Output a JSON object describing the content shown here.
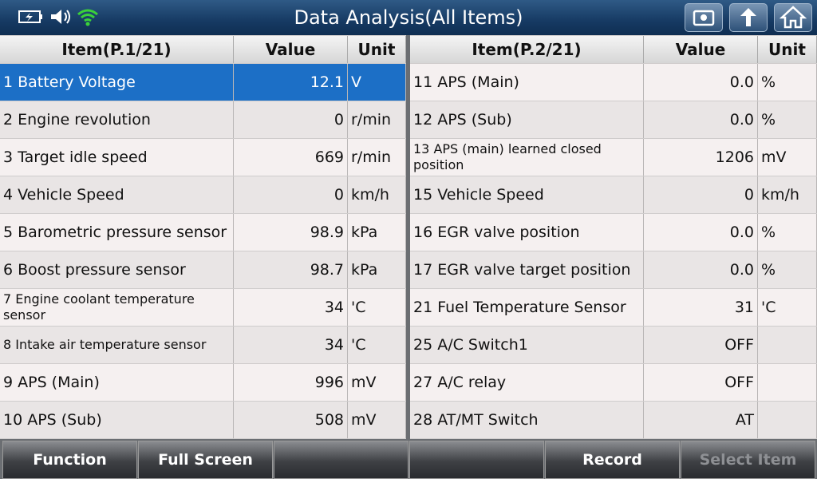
{
  "header": {
    "title": "Data Analysis(All Items)"
  },
  "left_table": {
    "columns": [
      "Item(P.1/21)",
      "Value",
      "Unit"
    ],
    "rows": [
      {
        "item": "1 Battery Voltage",
        "value": "12.1",
        "unit": "V"
      },
      {
        "item": "2 Engine revolution",
        "value": "0",
        "unit": "r/min"
      },
      {
        "item": "3 Target idle speed",
        "value": "669",
        "unit": "r/min"
      },
      {
        "item": "4 Vehicle Speed",
        "value": "0",
        "unit": "km/h"
      },
      {
        "item": "5 Barometric pressure sensor",
        "value": "98.9",
        "unit": "kPa"
      },
      {
        "item": "6 Boost pressure sensor",
        "value": "98.7",
        "unit": "kPa"
      },
      {
        "item": "7 Engine coolant temperature sensor",
        "value": "34",
        "unit": "'C"
      },
      {
        "item": "8 Intake air temperature sensor",
        "value": "34",
        "unit": "'C"
      },
      {
        "item": "9 APS (Main)",
        "value": "996",
        "unit": "mV"
      },
      {
        "item": "10 APS (Sub)",
        "value": "508",
        "unit": "mV"
      }
    ]
  },
  "right_table": {
    "columns": [
      "Item(P.2/21)",
      "Value",
      "Unit"
    ],
    "rows": [
      {
        "item": "11 APS (Main)",
        "value": "0.0",
        "unit": "%"
      },
      {
        "item": "12 APS (Sub)",
        "value": "0.0",
        "unit": "%"
      },
      {
        "item": "13 APS (main) learned closed position",
        "value": "1206",
        "unit": "mV"
      },
      {
        "item": "15 Vehicle Speed",
        "value": "0",
        "unit": "km/h"
      },
      {
        "item": "16 EGR valve position",
        "value": "0.0",
        "unit": "%"
      },
      {
        "item": "17 EGR valve target position",
        "value": "0.0",
        "unit": "%"
      },
      {
        "item": "21 Fuel Temperature Sensor",
        "value": "31",
        "unit": "'C"
      },
      {
        "item": "25 A/C Switch1",
        "value": "OFF"
      },
      {
        "item": "27 A/C relay",
        "value": "OFF"
      },
      {
        "item": "28 AT/MT Switch",
        "value": "AT"
      }
    ]
  },
  "footer": {
    "buttons": [
      "Function",
      "Full Screen",
      "Record",
      "Select Item"
    ]
  }
}
